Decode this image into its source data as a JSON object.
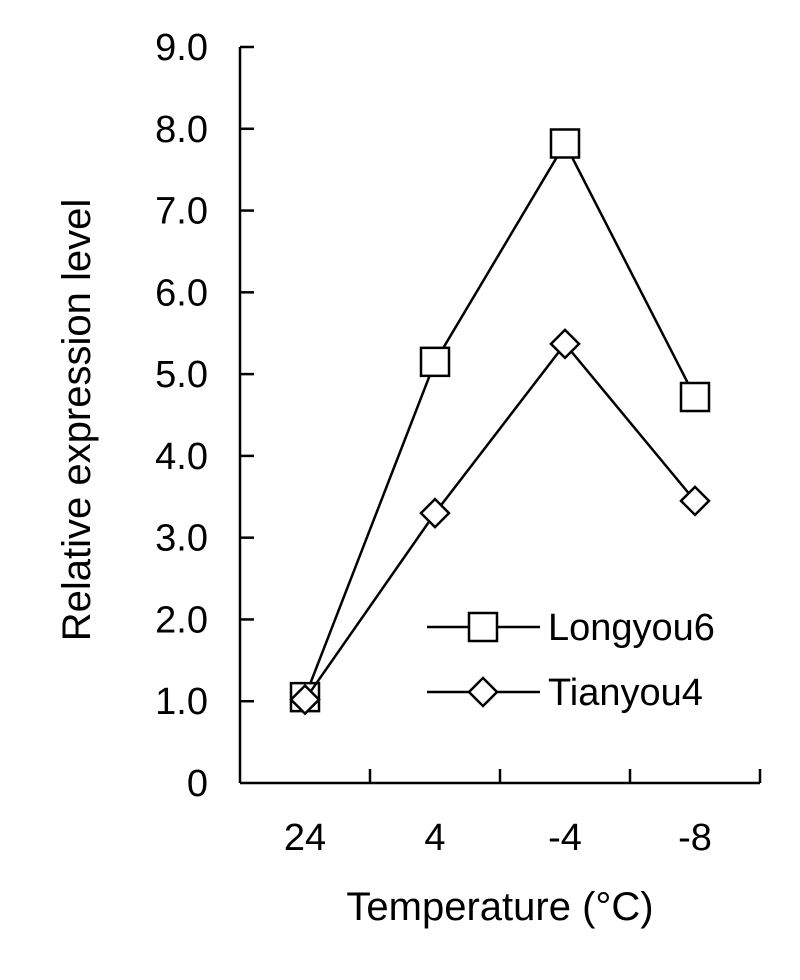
{
  "chart_data": {
    "type": "line",
    "categories": [
      "24",
      "4",
      "-4",
      "-8"
    ],
    "series": [
      {
        "name": "Longyou6",
        "marker": "square",
        "values": [
          1.05,
          5.15,
          7.82,
          4.72
        ]
      },
      {
        "name": "Tianyou4",
        "marker": "diamond",
        "values": [
          1.02,
          3.3,
          5.37,
          3.45
        ]
      }
    ],
    "xlabel": "Temperature (°C)",
    "ylabel": "Relative expression level",
    "ylim": [
      0,
      9
    ],
    "yticks": [
      "0",
      "1.0",
      "2.0",
      "3.0",
      "4.0",
      "5.0",
      "6.0",
      "7.0",
      "8.0",
      "9.0"
    ],
    "grid": false,
    "legend": "bottom-right",
    "line_color": "#000000"
  }
}
